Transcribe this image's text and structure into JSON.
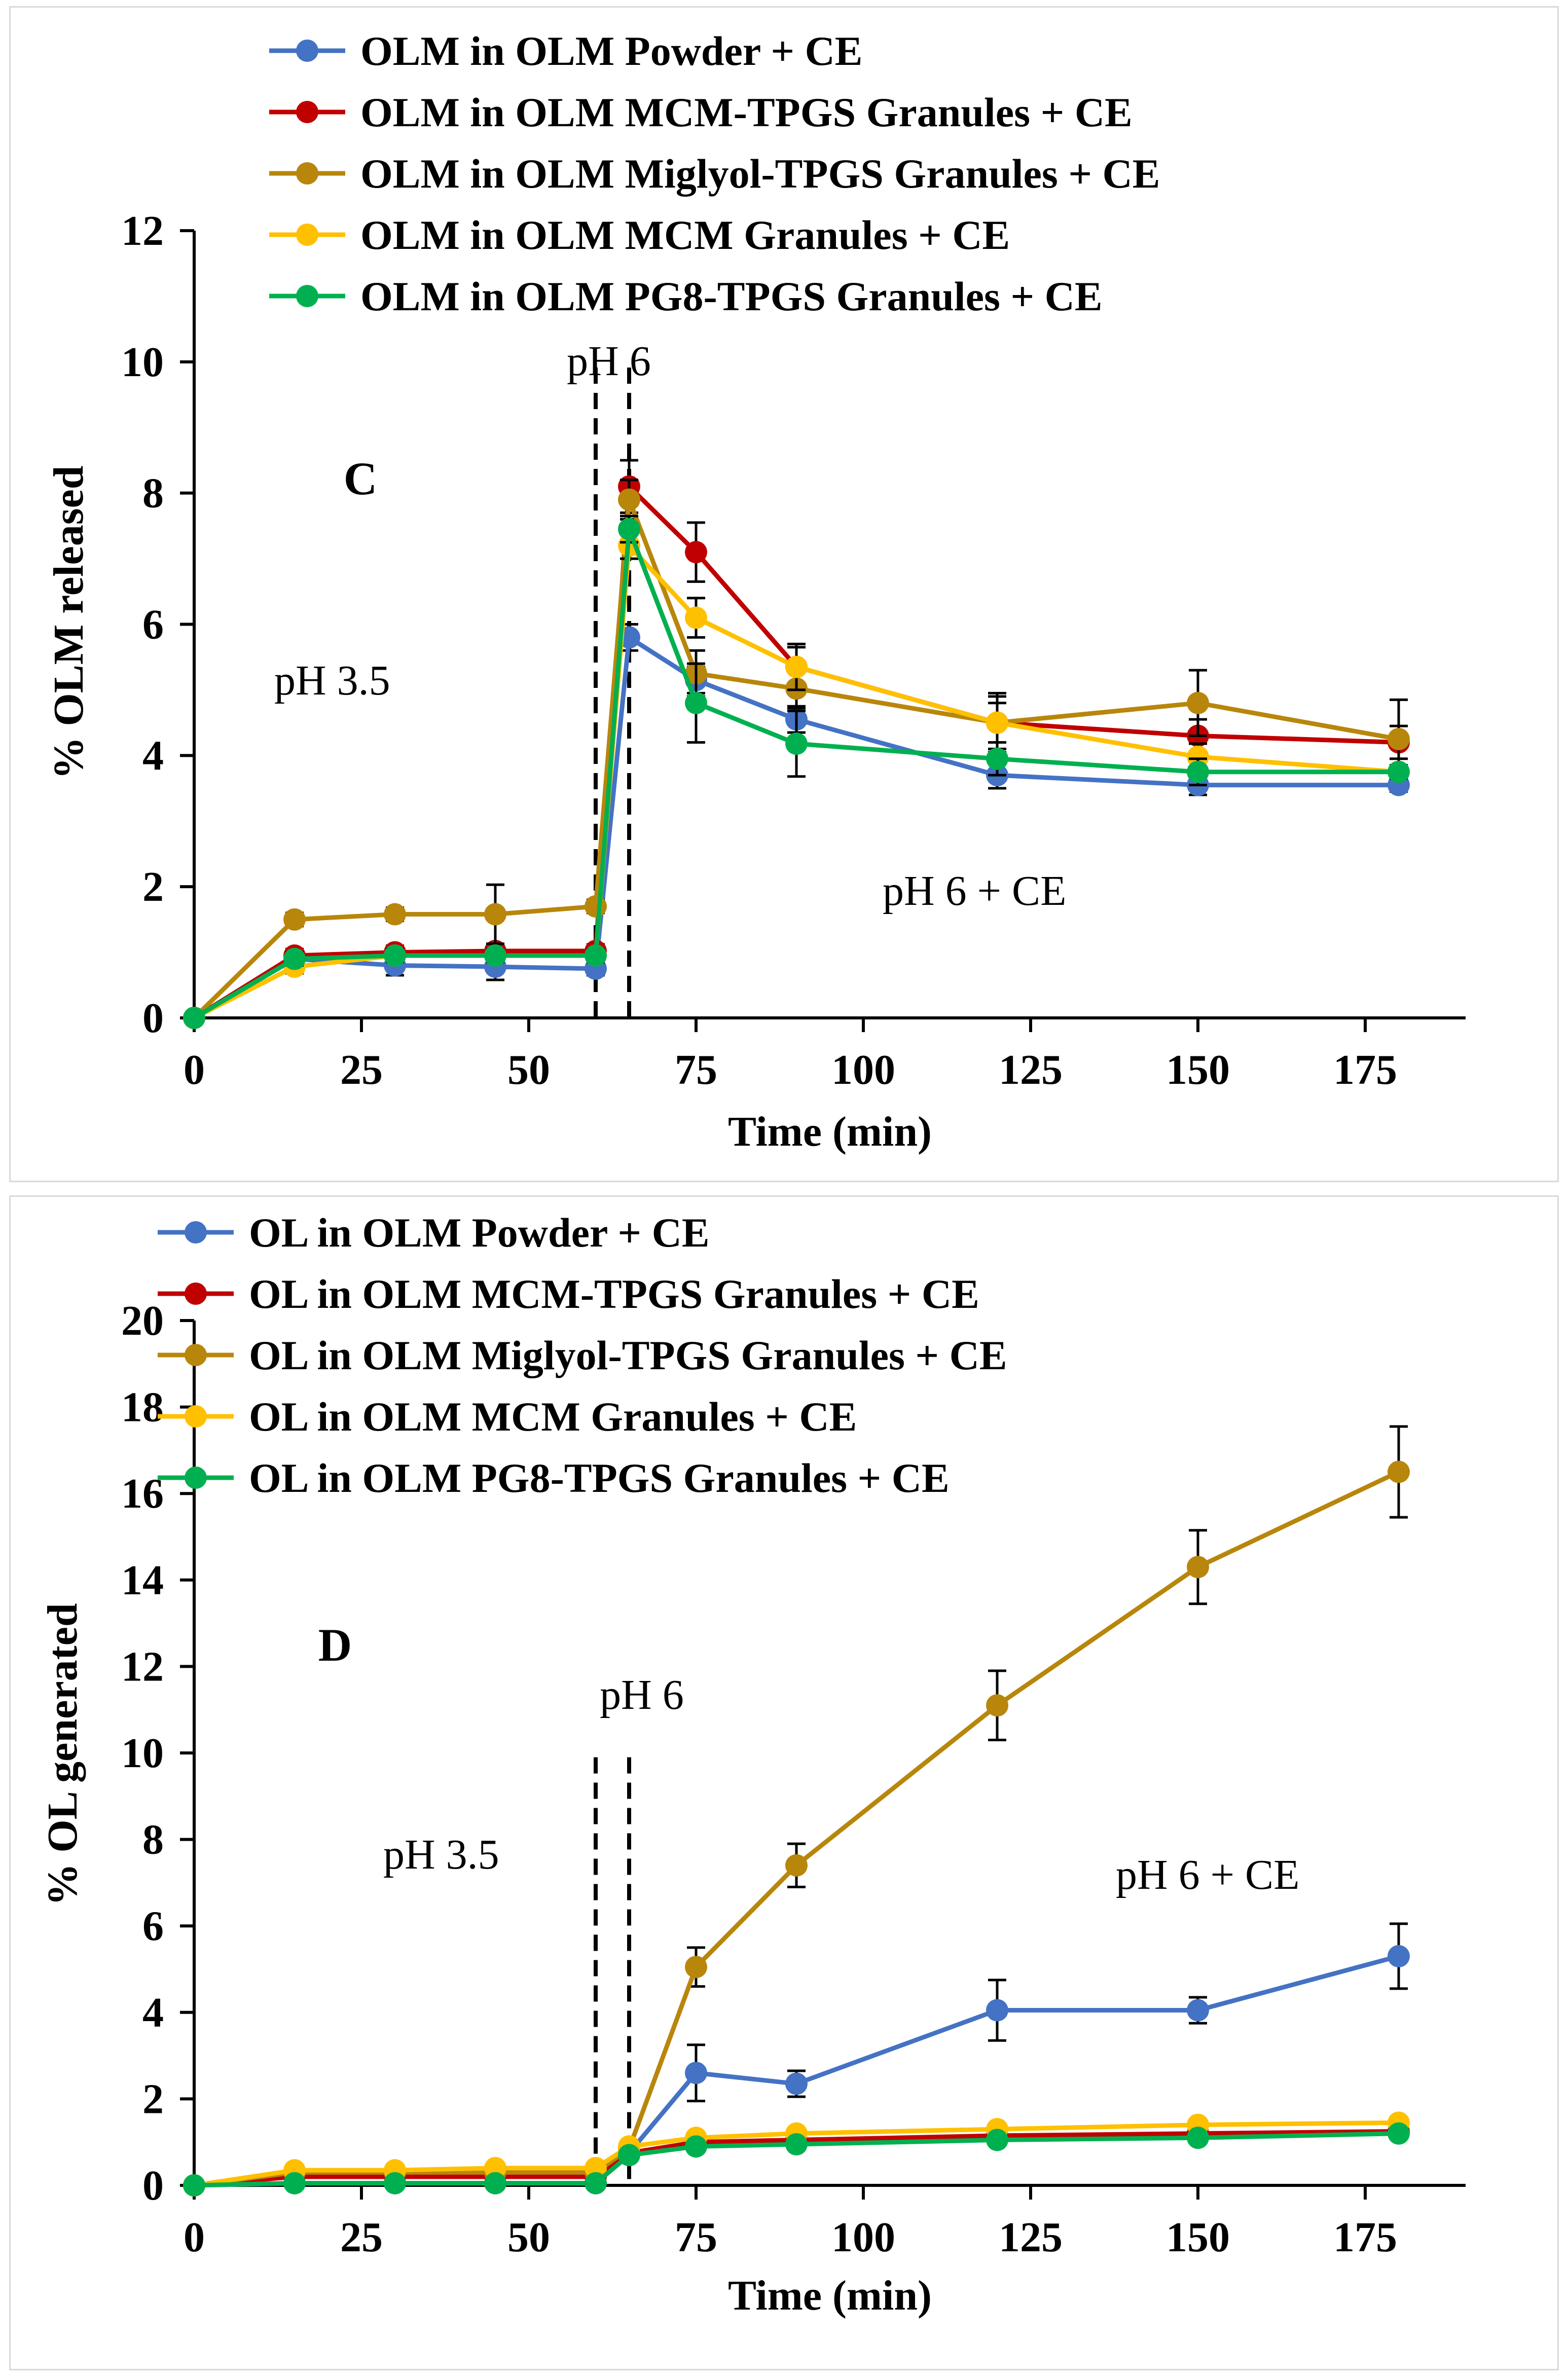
{
  "colors": {
    "blue": "#4472c4",
    "red": "#c00000",
    "gold": "#b8860b",
    "yellow": "#ffc000",
    "green": "#00b050"
  },
  "chart_data": [
    {
      "type": "line",
      "panel": "C",
      "ylabel": "% OLM released",
      "xlabel": "Time (min)",
      "xlim": [
        0,
        190
      ],
      "ylim": [
        0,
        12
      ],
      "xticks": [
        0,
        25,
        50,
        75,
        100,
        125,
        150,
        175
      ],
      "xtick_labels": [
        "0",
        "25",
        "50",
        "75",
        "100",
        "125",
        "150",
        "175"
      ],
      "yticks": [
        0,
        2,
        4,
        6,
        8,
        10,
        12
      ],
      "ytick_labels": [
        "0",
        "2",
        "4",
        "6",
        "8",
        "10",
        "12"
      ],
      "vlines": [
        60,
        65
      ],
      "annotations": {
        "ph6_top": "pH 6",
        "ph35": "pH 3.5",
        "ph6ce": "pH 6 + CE"
      },
      "x": [
        0,
        15,
        30,
        45,
        60,
        65,
        75,
        90,
        120,
        150,
        180
      ],
      "series": [
        {
          "name": "OLM in OLM Powder + CE",
          "color": "blue",
          "values": [
            0,
            0.9,
            0.8,
            0.78,
            0.75,
            5.8,
            5.15,
            4.55,
            3.7,
            3.55,
            3.55
          ],
          "errors": [
            0,
            0.1,
            0.15,
            0.2,
            0.1,
            0.2,
            0.2,
            0.2,
            0.2,
            0.15,
            0.1
          ]
        },
        {
          "name": "OLM in OLM MCM-TPGS Granules + CE",
          "color": "red",
          "values": [
            0,
            0.95,
            1.0,
            1.02,
            1.02,
            8.1,
            7.1,
            5.35,
            4.5,
            4.3,
            4.2
          ],
          "errors": [
            0,
            0.1,
            0.1,
            0.1,
            0.1,
            0.4,
            0.45,
            0.3,
            0.45,
            0.25,
            0.25
          ]
        },
        {
          "name": "OLM in OLM Miglyol-TPGS Granules + CE",
          "color": "gold",
          "values": [
            0,
            1.5,
            1.58,
            1.58,
            1.7,
            7.9,
            5.25,
            5.02,
            4.5,
            4.8,
            4.25
          ],
          "errors": [
            0,
            0.1,
            0.1,
            0.45,
            0.1,
            0.3,
            0.35,
            0.3,
            0.4,
            0.5,
            0.6
          ]
        },
        {
          "name": "OLM in OLM MCM Granules + CE",
          "color": "yellow",
          "values": [
            0,
            0.78,
            0.95,
            0.95,
            0.95,
            7.2,
            6.1,
            5.35,
            4.5,
            3.98,
            3.75
          ],
          "errors": [
            0,
            0.1,
            0.1,
            0.1,
            0.1,
            0.2,
            0.3,
            0.35,
            0.3,
            0.2,
            0.1
          ]
        },
        {
          "name": "OLM in OLM PG8-TPGS Granules + CE",
          "color": "green",
          "values": [
            0,
            0.9,
            0.95,
            0.95,
            0.95,
            7.45,
            4.8,
            4.18,
            3.95,
            3.75,
            3.75
          ],
          "errors": [
            0,
            0.1,
            0.1,
            0.1,
            0.1,
            0.2,
            0.6,
            0.5,
            0.25,
            0.2,
            0.1
          ]
        }
      ]
    },
    {
      "type": "line",
      "panel": "D",
      "ylabel": "% OL generated",
      "xlabel": "Time (min)",
      "xlim": [
        0,
        190
      ],
      "ylim": [
        0,
        20
      ],
      "xticks": [
        0,
        25,
        50,
        75,
        100,
        125,
        150,
        175
      ],
      "xtick_labels": [
        "0",
        "25",
        "50",
        "75",
        "100",
        "125",
        "150",
        "175"
      ],
      "yticks": [
        0,
        2,
        4,
        6,
        8,
        10,
        12,
        14,
        16,
        18,
        20
      ],
      "ytick_labels": [
        "0",
        "2",
        "4",
        "6",
        "8",
        "10",
        "12",
        "14",
        "16",
        "18",
        "20"
      ],
      "vlines": [
        60,
        65
      ],
      "annotations": {
        "ph6_top": "pH 6",
        "ph35": "pH 3.5",
        "ph6ce": "pH 6 + CE"
      },
      "x": [
        0,
        15,
        30,
        45,
        60,
        65,
        75,
        90,
        120,
        150,
        180
      ],
      "series": [
        {
          "name": "OL in OLM Powder + CE",
          "color": "blue",
          "values": [
            0,
            0.05,
            0.05,
            0.05,
            0.05,
            0.75,
            2.6,
            2.35,
            4.05,
            4.05,
            5.3
          ],
          "errors": [
            0,
            0,
            0,
            0,
            0,
            0.1,
            0.65,
            0.3,
            0.7,
            0.3,
            0.75
          ]
        },
        {
          "name": "OL in OLM MCM-TPGS Granules + CE",
          "color": "red",
          "values": [
            0,
            0.2,
            0.2,
            0.2,
            0.2,
            0.75,
            1.0,
            1.05,
            1.15,
            1.2,
            1.25
          ],
          "errors": [
            0,
            0,
            0,
            0,
            0,
            0.05,
            0.05,
            0.05,
            0.05,
            0.05,
            0.05
          ]
        },
        {
          "name": "OL in OLM Miglyol-TPGS Granules + CE",
          "color": "gold",
          "values": [
            0,
            0.3,
            0.3,
            0.3,
            0.3,
            0.85,
            5.05,
            7.4,
            11.1,
            14.3,
            16.5
          ],
          "errors": [
            0,
            0,
            0,
            0,
            0,
            0.05,
            0.45,
            0.5,
            0.8,
            0.85,
            1.05
          ]
        },
        {
          "name": "OL in OLM MCM Granules + CE",
          "color": "yellow",
          "values": [
            0,
            0.35,
            0.35,
            0.4,
            0.4,
            0.9,
            1.1,
            1.2,
            1.3,
            1.4,
            1.45
          ],
          "errors": [
            0,
            0,
            0,
            0,
            0,
            0.05,
            0.05,
            0.05,
            0.05,
            0.05,
            0.05
          ]
        },
        {
          "name": "OL in OLM PG8-TPGS Granules + CE",
          "color": "green",
          "values": [
            0,
            0.05,
            0.05,
            0.05,
            0.05,
            0.7,
            0.9,
            0.95,
            1.05,
            1.1,
            1.2
          ],
          "errors": [
            0,
            0,
            0,
            0,
            0,
            0.05,
            0.05,
            0.05,
            0.05,
            0.05,
            0.05
          ]
        }
      ]
    }
  ]
}
